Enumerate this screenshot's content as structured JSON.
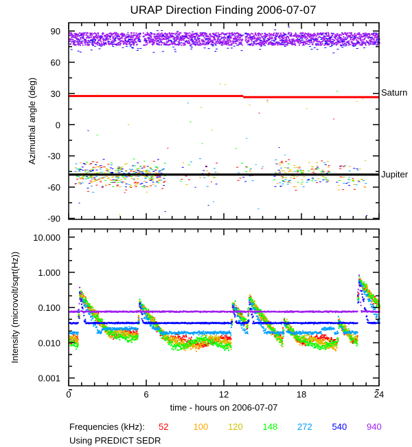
{
  "chart_data": [
    {
      "type": "scatter",
      "title": "URAP Direction Finding  2006-07-07",
      "ylabel": "Azimuthal angle (deg)",
      "xlim": [
        0,
        24
      ],
      "ylim": [
        -91,
        98
      ],
      "yticks": [
        "90",
        "60",
        "30",
        "0",
        "-30",
        "-60",
        "-90"
      ],
      "ytick_values": [
        90,
        60,
        30,
        0,
        -30,
        -60,
        -90
      ],
      "reference_lines": [
        {
          "name": "Saturn",
          "color": "#ff0000",
          "segments": [
            [
              0,
              13.5,
              27.5
            ],
            [
              13.5,
              24,
              26.5
            ]
          ]
        },
        {
          "name": "Jupiter",
          "color": "#000000",
          "segments": [
            [
              0,
              24,
              -48
            ]
          ]
        }
      ],
      "band_940kHz": {
        "angle_range": [
          77,
          89
        ],
        "gaps_hours": [
          [
            5.5,
            5.7
          ],
          [
            13.4,
            13.6
          ]
        ]
      },
      "clusters_near_jupiter": [
        {
          "hours": [
            0.4,
            7.4
          ],
          "center": -48,
          "spread": 6,
          "density": 60
        },
        {
          "hours": [
            8.6,
            9.4
          ],
          "center": -52,
          "spread": 6,
          "density": 10
        },
        {
          "hours": [
            10.0,
            11.6
          ],
          "center": -48,
          "spread": 6,
          "density": 15
        },
        {
          "hours": [
            12.8,
            14.2
          ],
          "center": -47,
          "spread": 6,
          "density": 12
        },
        {
          "hours": [
            15.8,
            20.2
          ],
          "center": -47,
          "spread": 6,
          "density": 35
        },
        {
          "hours": [
            20.6,
            23.0
          ],
          "center": -50,
          "spread": 7,
          "density": 20
        }
      ]
    },
    {
      "type": "scatter",
      "ylabel": "Intensity (microvolt/sqrt(Hz))",
      "xlabel": "time - hours on 2006-07-07",
      "xlim": [
        0,
        24
      ],
      "xticks": [
        "0",
        "6",
        "12",
        "18",
        "24"
      ],
      "xtick_values": [
        0,
        6,
        12,
        18,
        24
      ],
      "yscale": "log",
      "ylim": [
        0.0006,
        17
      ],
      "yticks": [
        "10.000",
        "1.000",
        "0.100",
        "0.010",
        "0.001"
      ],
      "ytick_values": [
        10,
        1,
        0.1,
        0.01,
        0.001
      ],
      "series": [
        {
          "name": "52",
          "color": "#ff0000",
          "baseline": 0.012
        },
        {
          "name": "100",
          "color": "#ffa500",
          "baseline": 0.0105
        },
        {
          "name": "120",
          "color": "#d2c000",
          "baseline": 0.0115
        },
        {
          "name": "148",
          "color": "#00ff00",
          "baseline": 0.0105
        },
        {
          "name": "272",
          "color": "#00a0ff",
          "baseline": 0.02
        },
        {
          "name": "540",
          "color": "#0000ff",
          "baseline": 0.038
        },
        {
          "name": "940",
          "color": "#a020f0",
          "baseline": 0.08
        }
      ],
      "burst_hours": [
        0.8,
        5.4,
        12.6,
        13.9,
        16.6,
        20.8,
        22.4
      ],
      "burst_peaks": [
        0.35,
        0.2,
        0.18,
        0.22,
        0.05,
        0.06,
        0.9
      ]
    }
  ],
  "legend": {
    "label": "Frequencies (kHz):",
    "items": [
      "52",
      "100",
      "120",
      "148",
      "272",
      "540",
      "940"
    ]
  },
  "footer": "Using PREDICT SEDR"
}
